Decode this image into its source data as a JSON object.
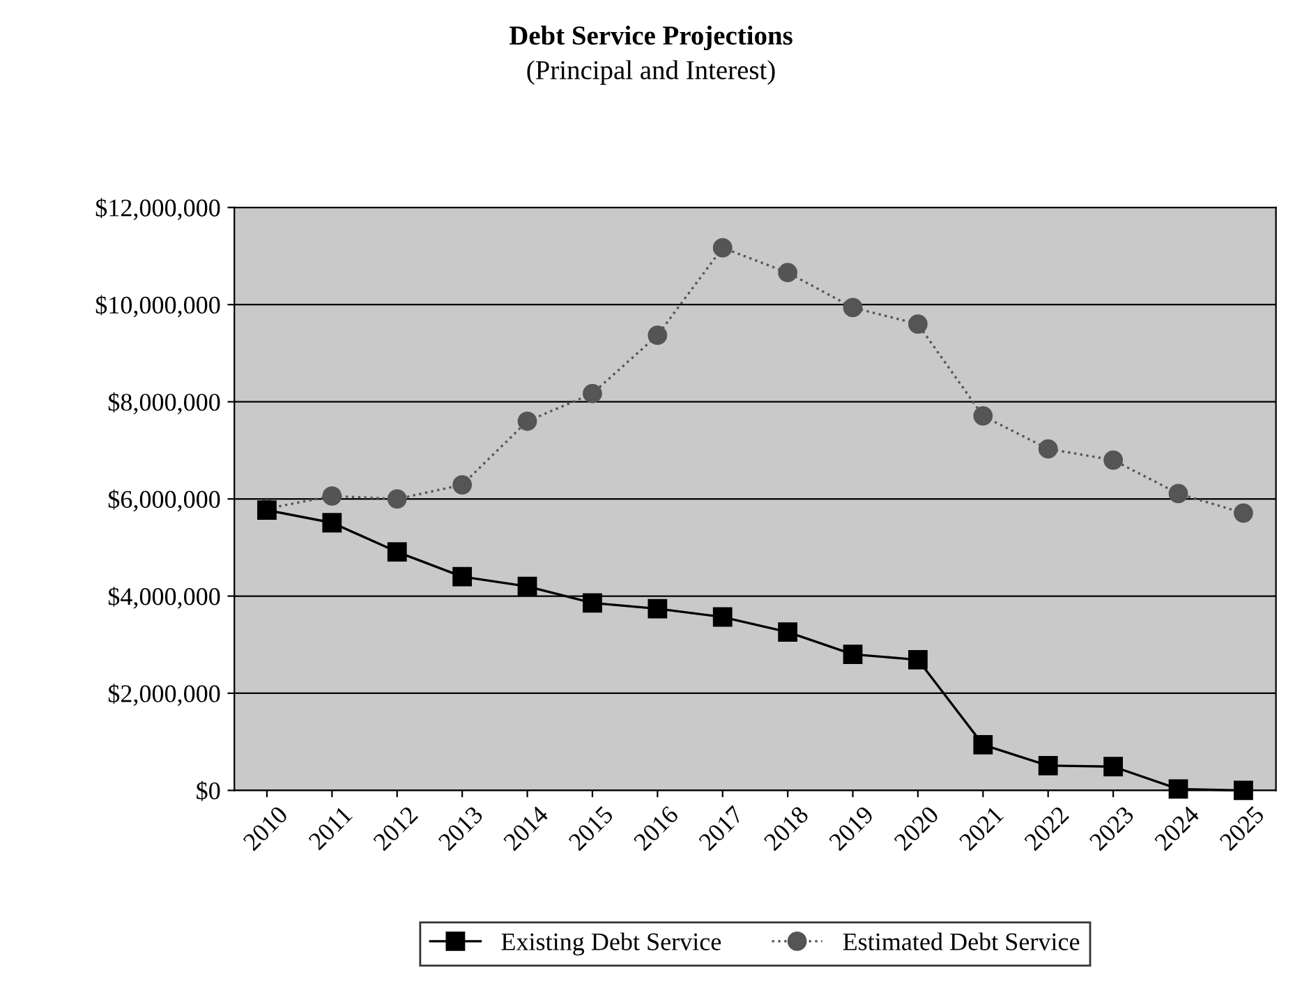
{
  "chart_data": {
    "type": "line",
    "title": "Debt Service Projections",
    "subtitle": "(Principal and Interest)",
    "categories": [
      "2010",
      "2011",
      "2012",
      "2013",
      "2014",
      "2015",
      "2016",
      "2017",
      "2018",
      "2019",
      "2020",
      "2021",
      "2022",
      "2023",
      "2024",
      "2025"
    ],
    "series": [
      {
        "name": "Existing Debt Service",
        "color": "#000000",
        "marker": "square",
        "line_style": "solid",
        "values": [
          5770000,
          5510000,
          4910000,
          4400000,
          4200000,
          3860000,
          3740000,
          3570000,
          3260000,
          2800000,
          2690000,
          940000,
          510000,
          490000,
          30000,
          0
        ]
      },
      {
        "name": "Estimated Debt Service",
        "color": "#555555",
        "marker": "circle",
        "line_style": "dotted",
        "values": [
          5800000,
          6060000,
          6000000,
          6290000,
          7600000,
          8170000,
          9370000,
          11170000,
          10660000,
          9940000,
          9600000,
          7710000,
          7030000,
          6800000,
          6110000,
          5710000
        ]
      }
    ],
    "ylim": [
      0,
      12000000
    ],
    "yticks": [
      {
        "value": 0,
        "label": "$0"
      },
      {
        "value": 2000000,
        "label": "$2,000,000"
      },
      {
        "value": 4000000,
        "label": "$4,000,000"
      },
      {
        "value": 6000000,
        "label": "$6,000,000"
      },
      {
        "value": 8000000,
        "label": "$8,000,000"
      },
      {
        "value": 10000000,
        "label": "$10,000,000"
      },
      {
        "value": 12000000,
        "label": "$12,000,000"
      }
    ],
    "grid": "y",
    "legend": "bottom"
  }
}
